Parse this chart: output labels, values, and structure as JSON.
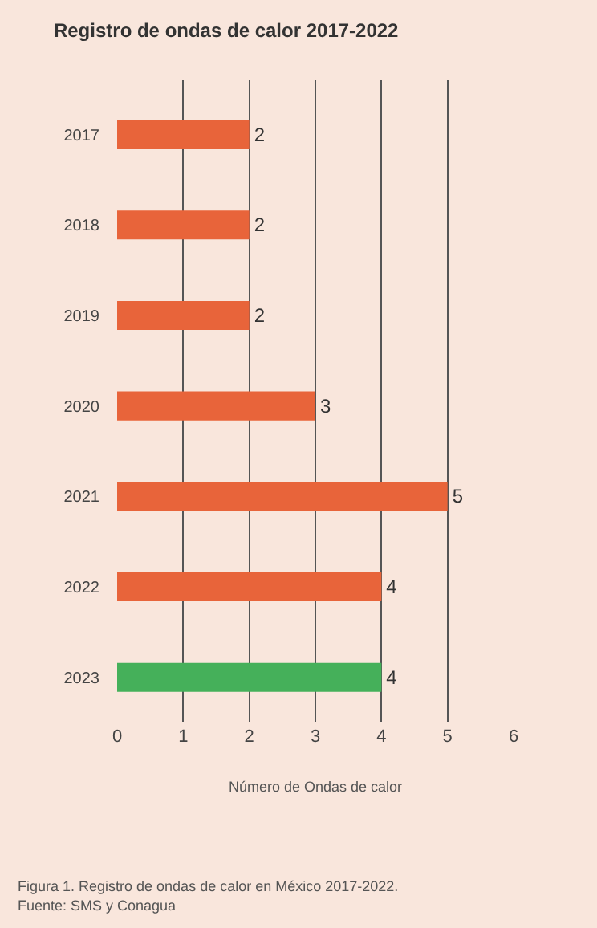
{
  "chart_data": {
    "type": "bar",
    "orientation": "horizontal",
    "title": "Registro de ondas de calor 2017-2022",
    "xlabel": "Número de Ondas de calor",
    "categories": [
      "2017",
      "2018",
      "2019",
      "2020",
      "2021",
      "2022",
      "2023"
    ],
    "values": [
      2,
      2,
      2,
      3,
      5,
      4,
      4
    ],
    "colors": [
      "#e8643a",
      "#e8643a",
      "#e8643a",
      "#e8643a",
      "#e8643a",
      "#e8643a",
      "#45b05a"
    ],
    "data_labels": true,
    "xlim": [
      0,
      6
    ],
    "xticks": [
      0,
      1,
      2,
      3,
      4,
      5,
      6
    ],
    "grid": "x",
    "legend": false,
    "annotations": [
      "Figura 1. Registro de ondas de calor en México 2017-2022.",
      "Fuente: SMS y Conagua"
    ]
  }
}
